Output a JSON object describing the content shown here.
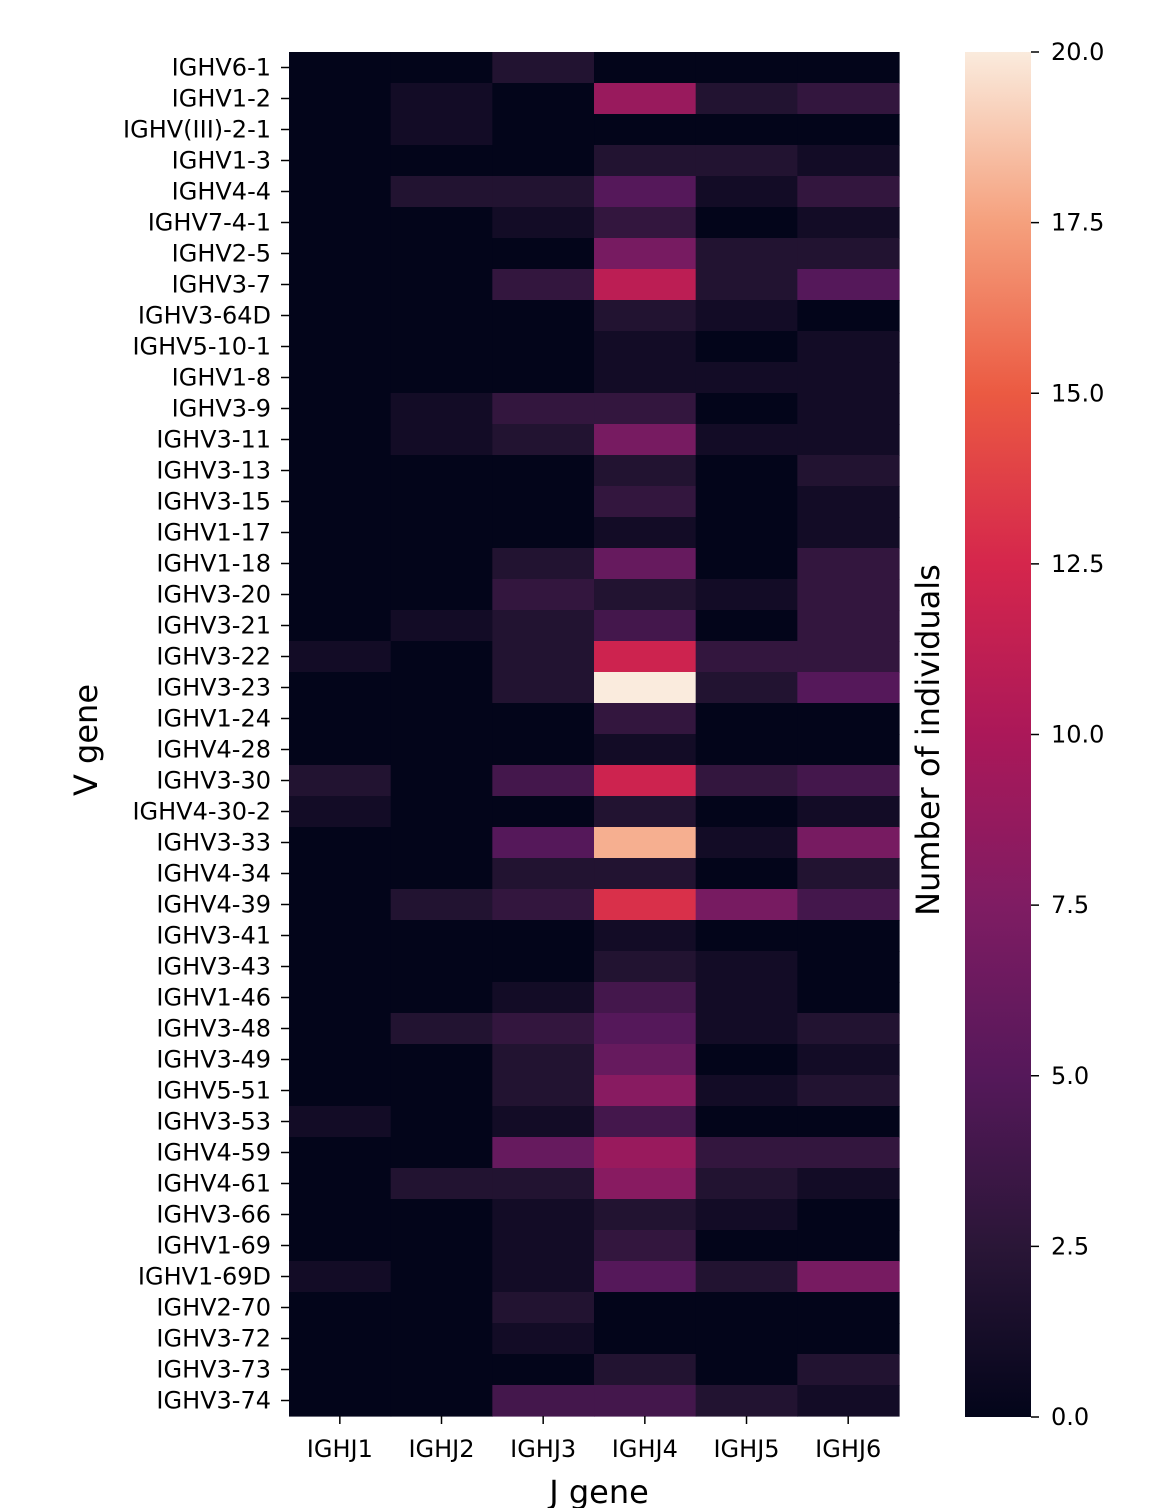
{
  "chart_data": {
    "type": "heatmap",
    "xlabel": "J gene",
    "ylabel": "V gene",
    "colorbar_label": "Number of individuals",
    "colorbar_range": [
      0,
      20
    ],
    "colorbar_ticks": [
      "0.0",
      "2.5",
      "5.0",
      "7.5",
      "10.0",
      "12.5",
      "15.0",
      "17.5",
      "20.0"
    ],
    "colormap": "rocket",
    "x_categories": [
      "IGHJ1",
      "IGHJ2",
      "IGHJ3",
      "IGHJ4",
      "IGHJ5",
      "IGHJ6"
    ],
    "y_categories": [
      "IGHV6-1",
      "IGHV1-2",
      "IGHV(III)-2-1",
      "IGHV1-3",
      "IGHV4-4",
      "IGHV7-4-1",
      "IGHV2-5",
      "IGHV3-7",
      "IGHV3-64D",
      "IGHV5-10-1",
      "IGHV1-8",
      "IGHV3-9",
      "IGHV3-11",
      "IGHV3-13",
      "IGHV3-15",
      "IGHV1-17",
      "IGHV1-18",
      "IGHV3-20",
      "IGHV3-21",
      "IGHV3-22",
      "IGHV3-23",
      "IGHV1-24",
      "IGHV4-28",
      "IGHV3-30",
      "IGHV4-30-2",
      "IGHV3-33",
      "IGHV4-34",
      "IGHV4-39",
      "IGHV3-41",
      "IGHV3-43",
      "IGHV1-46",
      "IGHV3-48",
      "IGHV3-49",
      "IGHV5-51",
      "IGHV3-53",
      "IGHV4-59",
      "IGHV4-61",
      "IGHV3-66",
      "IGHV1-69",
      "IGHV1-69D",
      "IGHV2-70",
      "IGHV3-72",
      "IGHV3-73",
      "IGHV3-74"
    ],
    "values": [
      [
        0,
        0,
        2,
        0,
        0,
        0
      ],
      [
        0,
        1,
        0,
        9,
        2,
        3
      ],
      [
        0,
        1,
        0,
        0,
        0,
        0
      ],
      [
        0,
        0,
        0,
        2,
        2,
        1
      ],
      [
        0,
        2,
        2,
        5,
        1,
        3
      ],
      [
        0,
        0,
        1,
        3,
        0,
        1
      ],
      [
        0,
        0,
        0,
        7,
        2,
        2
      ],
      [
        0,
        0,
        3,
        11,
        2,
        5
      ],
      [
        0,
        0,
        0,
        2,
        1,
        0
      ],
      [
        0,
        0,
        0,
        1,
        0,
        1
      ],
      [
        0,
        0,
        0,
        1,
        1,
        1
      ],
      [
        0,
        1,
        3,
        3,
        0,
        1
      ],
      [
        0,
        1,
        2,
        7,
        1,
        1
      ],
      [
        0,
        0,
        0,
        2,
        0,
        2
      ],
      [
        0,
        0,
        0,
        3,
        0,
        1
      ],
      [
        0,
        0,
        0,
        1,
        0,
        1
      ],
      [
        0,
        0,
        2,
        6,
        0,
        3
      ],
      [
        0,
        0,
        3,
        2,
        1,
        3
      ],
      [
        0,
        1,
        2,
        4,
        0,
        3
      ],
      [
        1,
        0,
        2,
        12,
        3,
        3
      ],
      [
        0,
        0,
        2,
        20,
        2,
        5
      ],
      [
        0,
        0,
        0,
        3,
        0,
        0
      ],
      [
        0,
        0,
        0,
        1,
        0,
        0
      ],
      [
        2,
        0,
        4,
        12,
        3,
        4
      ],
      [
        1,
        0,
        0,
        2,
        0,
        1
      ],
      [
        0,
        0,
        5,
        18,
        1,
        7
      ],
      [
        0,
        0,
        2,
        2,
        0,
        2
      ],
      [
        0,
        2,
        3,
        13,
        7,
        4
      ],
      [
        0,
        0,
        0,
        1,
        0,
        0
      ],
      [
        0,
        0,
        0,
        2,
        1,
        0
      ],
      [
        0,
        0,
        1,
        4,
        1,
        0
      ],
      [
        0,
        2,
        3,
        5,
        1,
        2
      ],
      [
        0,
        0,
        2,
        6,
        0,
        1
      ],
      [
        0,
        0,
        2,
        8,
        1,
        2
      ],
      [
        1,
        0,
        1,
        4,
        0,
        0
      ],
      [
        0,
        0,
        6,
        9,
        3,
        3
      ],
      [
        0,
        2,
        2,
        8,
        2,
        1
      ],
      [
        0,
        0,
        1,
        2,
        1,
        0
      ],
      [
        0,
        0,
        1,
        3,
        0,
        0
      ],
      [
        1,
        0,
        1,
        5,
        2,
        7
      ],
      [
        0,
        0,
        2,
        0,
        0,
        0
      ],
      [
        0,
        0,
        1,
        0,
        0,
        0
      ],
      [
        0,
        0,
        0,
        2,
        0,
        2
      ],
      [
        0,
        0,
        4,
        4,
        2,
        1
      ]
    ]
  }
}
